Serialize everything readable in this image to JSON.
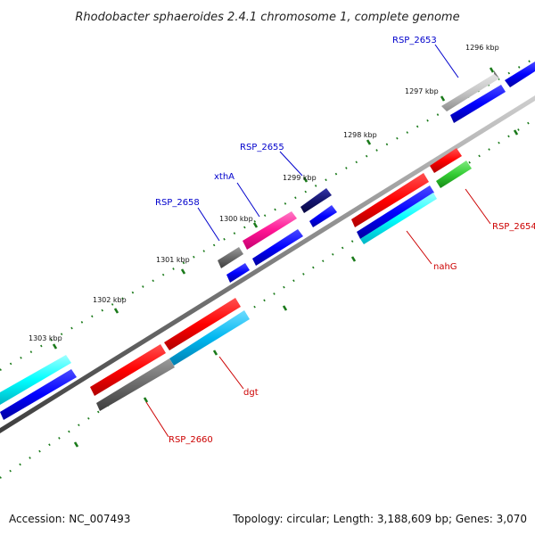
{
  "title": "Rhodobacter sphaeroides 2.4.1 chromosome 1, complete genome",
  "accession": "Accession: NC_007493",
  "summary": "Topology: circular; Length: 3,188,609 bp; Genes: 3,070",
  "ticks": [
    "1296 kbp",
    "1297 kbp",
    "1298 kbp",
    "1299 kbp",
    "1300 kbp",
    "1301 kbp",
    "1302 kbp",
    "1303 kbp"
  ],
  "gene_labels": {
    "rsp2653": "RSP_2653",
    "rsp2655": "RSP_2655",
    "xtha": "xthA",
    "rsp2658": "RSP_2658",
    "rsp2654": "RSP_2654",
    "nahg": "nahG",
    "dgt": "dgt",
    "rsp2660": "RSP_2660"
  },
  "colors": {
    "backbone": "#777777",
    "tick": "#1a7a1a",
    "blue_label": "#0000cc",
    "red_label": "#cc0000"
  }
}
